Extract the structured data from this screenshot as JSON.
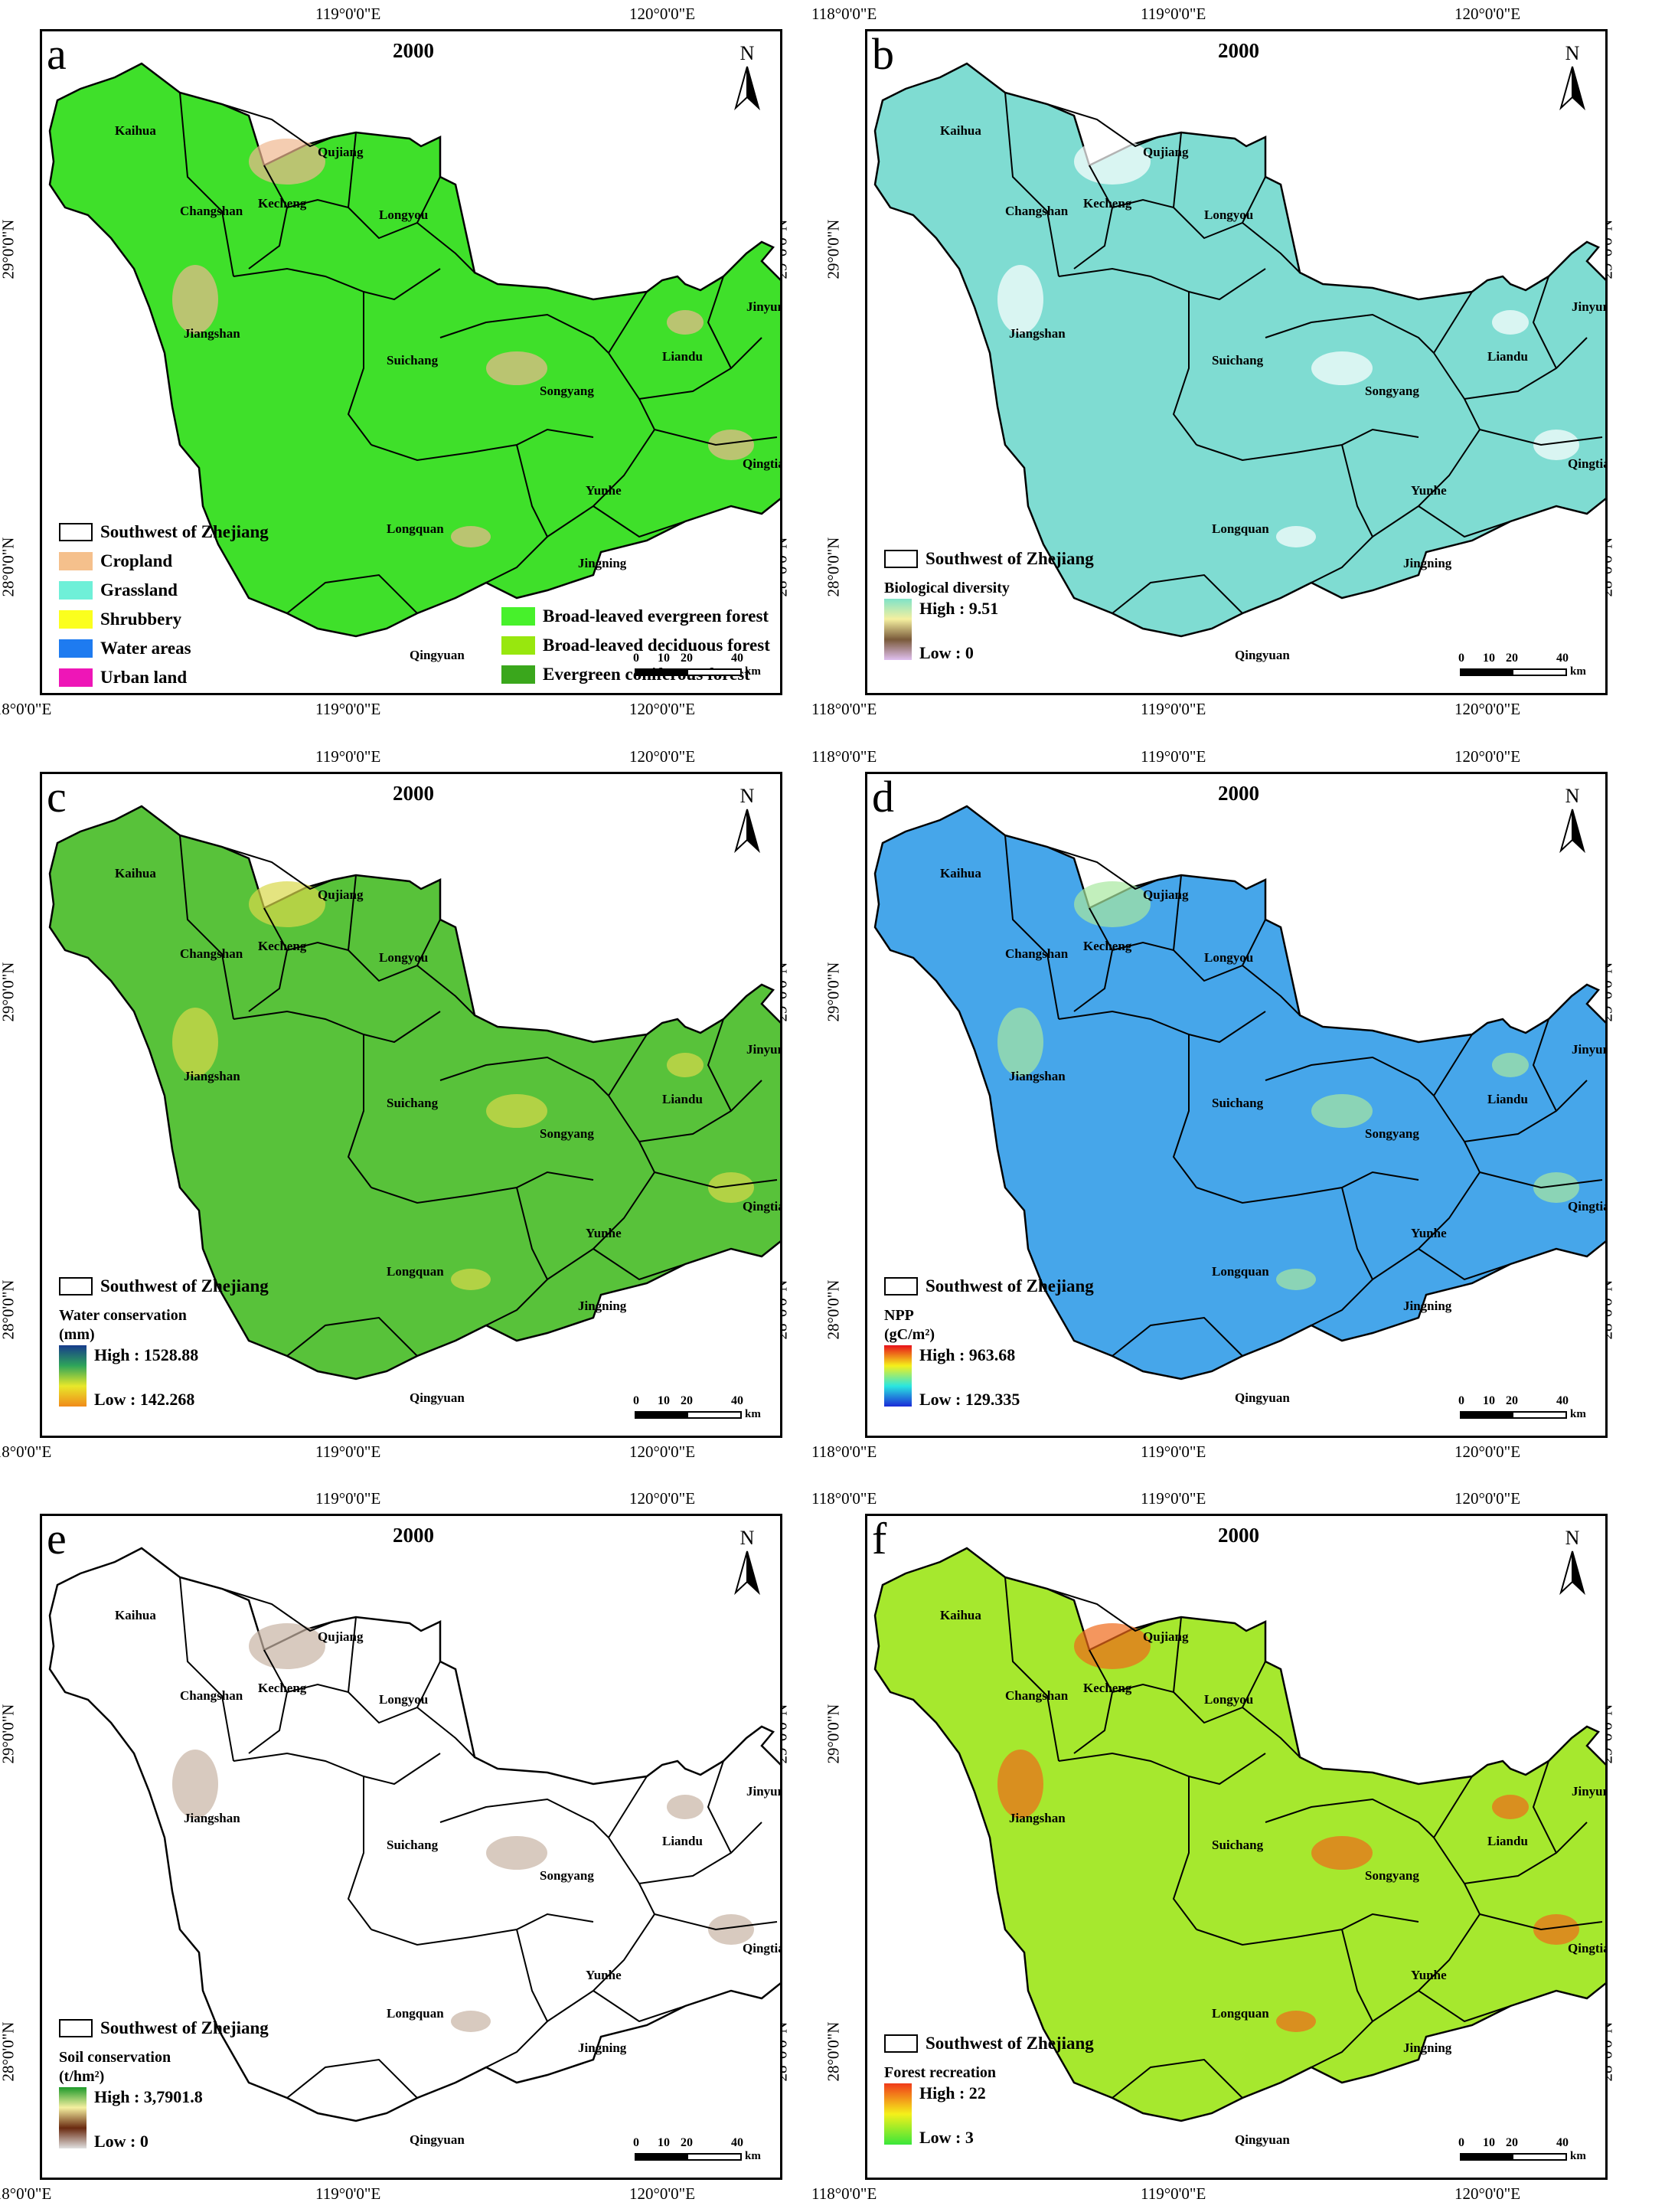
{
  "panels": [
    {
      "letter": "a",
      "year": "2000",
      "fill": "#3fe02a",
      "accent": "#f0b890",
      "legend": {
        "outline_label": "Southwest of Zhejiang",
        "items": [
          {
            "label": "Cropland",
            "color": "#f5c08c"
          },
          {
            "label": "Grassland",
            "color": "#6ff0d8"
          },
          {
            "label": "Shrubbery",
            "color": "#fbff1e"
          },
          {
            "label": "Water areas",
            "color": "#1e7bf0"
          },
          {
            "label": "Urban land",
            "color": "#ee16b7"
          }
        ],
        "items_right": [
          {
            "label": "Broad-leaved evergreen forest",
            "color": "#47f12b"
          },
          {
            "label": "Broad-leaved deciduous forest",
            "color": "#98e70e"
          },
          {
            "label": "Evergreen coniferous forest",
            "color": "#3aa71c"
          }
        ]
      }
    },
    {
      "letter": "b",
      "year": "2000",
      "fill": "#7fdcd2",
      "accent": "#ffffff",
      "legend": {
        "outline_label": "Southwest of Zhejiang",
        "title": "Biological diversity",
        "unit": "",
        "high": "High : 9.51",
        "low": "Low : 0",
        "gradient": [
          "#7fe3c8",
          "#f5f0a0",
          "#7a5a3a",
          "#e0c0f0"
        ]
      }
    },
    {
      "letter": "c",
      "year": "2000",
      "fill": "#58c23a",
      "accent": "#d8d84a",
      "legend": {
        "outline_label": "Southwest of Zhejiang",
        "title": "Water conservation",
        "unit": "(mm)",
        "high": "High : 1528.88",
        "low": "Low : 142.268",
        "gradient": [
          "#173b8c",
          "#2ea55a",
          "#e8e82a",
          "#f08a1a"
        ]
      }
    },
    {
      "letter": "d",
      "year": "2000",
      "fill": "#46a6ea",
      "accent": "#a8e8a0",
      "legend": {
        "outline_label": "Southwest of Zhejiang",
        "title": "NPP",
        "unit": "(gC/m²)",
        "high": "High : 963.68",
        "low": "Low : 129.335",
        "gradient": [
          "#e8101a",
          "#f5f01a",
          "#2ae6e0",
          "#1a2ad8"
        ]
      }
    },
    {
      "letter": "e",
      "year": "2000",
      "fill": "#ffffff",
      "accent": "#c8b4a4",
      "legend": {
        "outline_label": "Southwest of Zhejiang",
        "title": "Soil conservation",
        "unit": "(t/hm²)",
        "high": "High : 3,7901.8",
        "low": "Low : 0",
        "gradient": [
          "#1e9a2a",
          "#f5f0a0",
          "#6a2a10",
          "#e0e0e0"
        ]
      }
    },
    {
      "letter": "f",
      "year": "2000",
      "fill": "#a6e82e",
      "accent": "#f06a1a",
      "legend": {
        "outline_label": "Southwest of Zhejiang",
        "title": "Forest recreation",
        "unit": "",
        "high": "High : 22",
        "low": "Low : 3",
        "gradient": [
          "#f03a1a",
          "#f5f01a",
          "#3ae63a"
        ]
      }
    }
  ],
  "map_common": {
    "north_label": "N",
    "lon_labels": [
      "118°0'0\"E",
      "119°0'0\"E",
      "120°0'0\"E"
    ],
    "lat_labels": [
      "29°0'0\"N",
      "28°0'0\"N"
    ],
    "scale": {
      "ticks": [
        "0",
        "10",
        "20",
        "40"
      ],
      "unit": "km"
    },
    "counties": [
      "Kaihua",
      "Qujiang",
      "Kecheng",
      "Changshan",
      "Longyou",
      "Jiangshan",
      "Suichang",
      "Songyang",
      "Liandu",
      "Jinyun",
      "Qingtian",
      "Yunhe",
      "Longquan",
      "Jingning",
      "Qingyuan"
    ]
  }
}
